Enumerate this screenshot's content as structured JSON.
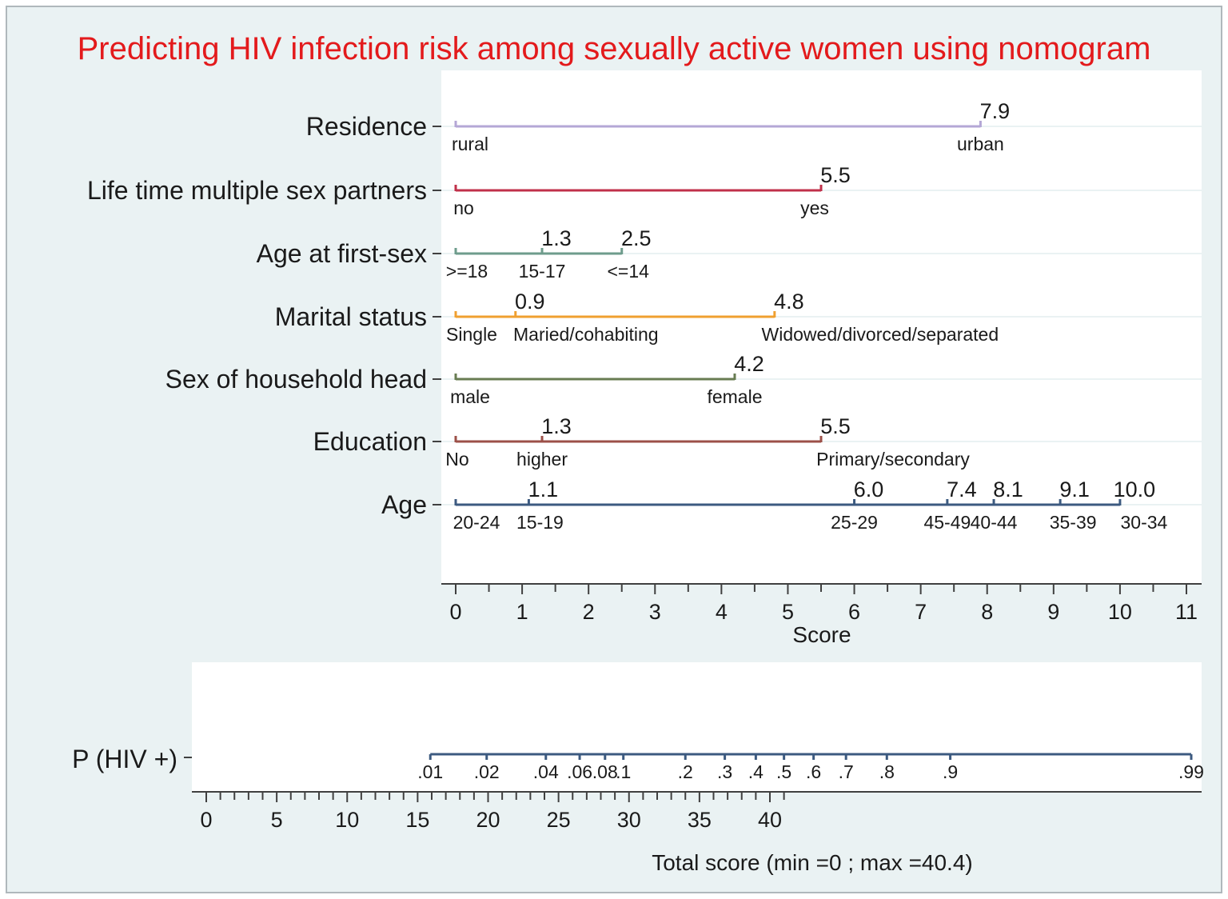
{
  "chart_data": {
    "type": "nomogram",
    "title": "Predicting HIV infection risk among sexually active women using nomogram",
    "colors": {
      "title": "#e31a1c",
      "outer_background": "#eaf2f3",
      "plot_background": "#ffffff",
      "axis": "#404040",
      "grid": "#eaf2f3",
      "residence": "#b4a7d6",
      "partners": "#c0304a",
      "age_first_sex": "#6e9c8c",
      "marital": "#f0a030",
      "household_head": "#687c52",
      "education": "#9c5048",
      "age": "#3c5a80",
      "probability": "#3c5a80"
    },
    "score_axis": {
      "label": "Score",
      "min": 0,
      "max": 11,
      "major_ticks": [
        0,
        1,
        2,
        3,
        4,
        5,
        6,
        7,
        8,
        9,
        10,
        11
      ],
      "minor_step": 0.5
    },
    "variables": [
      {
        "id": "residence",
        "label": "Residence",
        "color_key": "residence",
        "levels": [
          {
            "category": "rural",
            "score": 0
          },
          {
            "category": "urban",
            "score": 7.9,
            "score_label": "7.9"
          }
        ]
      },
      {
        "id": "partners",
        "label": "Life time multiple sex partners",
        "color_key": "partners",
        "levels": [
          {
            "category": "no",
            "score": 0
          },
          {
            "category": "yes",
            "score": 5.5,
            "score_label": "5.5"
          }
        ]
      },
      {
        "id": "age_first_sex",
        "label": "Age at first-sex",
        "color_key": "age_first_sex",
        "levels": [
          {
            "category": ">=18",
            "score": 0
          },
          {
            "category": "15-17",
            "score": 1.3,
            "score_label": "1.3"
          },
          {
            "category": "<=14",
            "score": 2.5,
            "score_label": "2.5"
          }
        ]
      },
      {
        "id": "marital",
        "label": "Marital status",
        "color_key": "marital",
        "levels": [
          {
            "category": "Single",
            "score": 0
          },
          {
            "category": "Maried/cohabiting",
            "score": 0.9,
            "score_label": "0.9"
          },
          {
            "category": "Widowed/divorced/separated",
            "score": 4.8,
            "score_label": "4.8"
          }
        ]
      },
      {
        "id": "household_head",
        "label": "Sex of household head",
        "color_key": "household_head",
        "levels": [
          {
            "category": "male",
            "score": 0
          },
          {
            "category": "female",
            "score": 4.2,
            "score_label": "4.2"
          }
        ]
      },
      {
        "id": "education",
        "label": "Education",
        "color_key": "education",
        "levels": [
          {
            "category": "No",
            "score": 0
          },
          {
            "category": "higher",
            "score": 1.3,
            "score_label": "1.3"
          },
          {
            "category": "Primary/secondary",
            "score": 5.5,
            "score_label": "5.5"
          }
        ]
      },
      {
        "id": "age",
        "label": "Age",
        "color_key": "age",
        "levels": [
          {
            "category": "20-24",
            "score": 0
          },
          {
            "category": "15-19",
            "score": 1.1,
            "score_label": "1.1"
          },
          {
            "category": "25-29",
            "score": 6.0,
            "score_label": "6.0"
          },
          {
            "category": "45-49",
            "score": 7.4,
            "score_label": "7.4"
          },
          {
            "category": "40-44",
            "score": 8.1,
            "score_label": "8.1"
          },
          {
            "category": "35-39",
            "score": 9.1,
            "score_label": "9.1"
          },
          {
            "category": "30-34",
            "score": 10.0,
            "score_label": "10.0"
          }
        ]
      }
    ],
    "probability_axis": {
      "label": "P (HIV +)",
      "ticks": [
        {
          "label": ".01",
          "total": 15.9
        },
        {
          "label": ".02",
          "total": 19.9
        },
        {
          "label": ".04",
          "total": 24.1
        },
        {
          "label": ".06",
          "total": 26.5
        },
        {
          "label": ".08",
          "total": 28.3
        },
        {
          "label": ".1",
          "total": 29.6
        },
        {
          "label": ".2",
          "total": 34.0
        },
        {
          "label": ".3",
          "total": 36.8
        },
        {
          "label": ".4",
          "total": 39.0
        },
        {
          "label": ".5",
          "total": 41.0
        },
        {
          "label": ".6",
          "total": 43.1
        },
        {
          "label": ".7",
          "total": 45.4
        },
        {
          "label": ".8",
          "total": 48.3
        },
        {
          "label": ".9",
          "total": 52.8
        },
        {
          "label": ".99",
          "total": 69.9
        }
      ]
    },
    "total_score_axis": {
      "label": "Total score  (min =0 ; max =40.4)",
      "min": 0,
      "max": 40.4,
      "major_ticks": [
        0,
        5,
        10,
        15,
        20,
        25,
        30,
        35,
        40
      ],
      "minor_step": 1
    }
  }
}
